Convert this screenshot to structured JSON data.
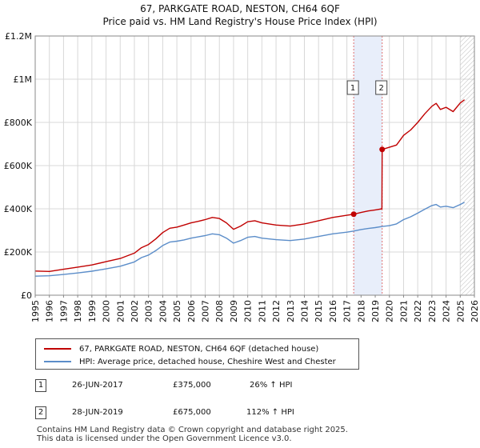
{
  "header": {
    "title_line1": "67, PARKGATE ROAD, NESTON, CH64 6QF",
    "title_line2": "Price paid vs. HM Land Registry's House Price Index (HPI)"
  },
  "colors": {
    "price_line": "#c00000",
    "hpi_line": "#5b8dc9",
    "shade": "#e8eefa",
    "grid": "#d8d8d8",
    "vline": "#e07070"
  },
  "chart_data": {
    "type": "line",
    "title": "Price paid vs. HM Land Registry's House Price Index (HPI)",
    "xlabel": "",
    "ylabel": "",
    "xlim": [
      1995,
      2026
    ],
    "ylim": [
      0,
      1200000
    ],
    "y_ticks": [
      {
        "value": 0,
        "label": "£0"
      },
      {
        "value": 200000,
        "label": "£200K"
      },
      {
        "value": 400000,
        "label": "£400K"
      },
      {
        "value": 600000,
        "label": "£600K"
      },
      {
        "value": 800000,
        "label": "£800K"
      },
      {
        "value": 1000000,
        "label": "£1M"
      },
      {
        "value": 1200000,
        "label": "£1.2M"
      }
    ],
    "x_ticks": [
      "1995",
      "1996",
      "1997",
      "1998",
      "1999",
      "2000",
      "2001",
      "2002",
      "2003",
      "2004",
      "2005",
      "2006",
      "2007",
      "2008",
      "2009",
      "2010",
      "2011",
      "2012",
      "2013",
      "2014",
      "2015",
      "2016",
      "2017",
      "2018",
      "2019",
      "2020",
      "2021",
      "2022",
      "2023",
      "2024",
      "2025",
      "2026"
    ],
    "shaded_range": [
      2017.48,
      2019.49
    ],
    "future_hatch_from": 2025.0,
    "series": [
      {
        "name": "67, PARKGATE ROAD, NESTON, CH64 6QF (detached house)",
        "color": "#c00000",
        "points": [
          [
            1995.0,
            112000
          ],
          [
            1996.0,
            110000
          ],
          [
            1997.0,
            120000
          ],
          [
            1998.0,
            130000
          ],
          [
            1999.0,
            140000
          ],
          [
            2000.0,
            155000
          ],
          [
            2001.0,
            170000
          ],
          [
            2002.0,
            195000
          ],
          [
            2002.5,
            220000
          ],
          [
            2003.0,
            235000
          ],
          [
            2003.5,
            260000
          ],
          [
            2004.0,
            290000
          ],
          [
            2004.5,
            310000
          ],
          [
            2005.0,
            315000
          ],
          [
            2005.5,
            325000
          ],
          [
            2006.0,
            335000
          ],
          [
            2006.5,
            342000
          ],
          [
            2007.0,
            350000
          ],
          [
            2007.5,
            360000
          ],
          [
            2008.0,
            355000
          ],
          [
            2008.5,
            335000
          ],
          [
            2009.0,
            305000
          ],
          [
            2009.5,
            320000
          ],
          [
            2010.0,
            340000
          ],
          [
            2010.5,
            345000
          ],
          [
            2011.0,
            335000
          ],
          [
            2012.0,
            325000
          ],
          [
            2013.0,
            320000
          ],
          [
            2014.0,
            330000
          ],
          [
            2015.0,
            345000
          ],
          [
            2016.0,
            360000
          ],
          [
            2017.0,
            370000
          ],
          [
            2017.48,
            375000
          ],
          [
            2018.0,
            383000
          ],
          [
            2018.5,
            390000
          ],
          [
            2019.0,
            395000
          ],
          [
            2019.47,
            400000
          ],
          [
            2019.49,
            675000
          ],
          [
            2020.0,
            685000
          ],
          [
            2020.5,
            695000
          ],
          [
            2021.0,
            740000
          ],
          [
            2021.5,
            765000
          ],
          [
            2022.0,
            800000
          ],
          [
            2022.5,
            840000
          ],
          [
            2023.0,
            875000
          ],
          [
            2023.3,
            888000
          ],
          [
            2023.6,
            860000
          ],
          [
            2024.0,
            870000
          ],
          [
            2024.5,
            850000
          ],
          [
            2025.0,
            890000
          ],
          [
            2025.3,
            905000
          ]
        ]
      },
      {
        "name": "HPI: Average price, detached house, Cheshire West and Chester",
        "color": "#5b8dc9",
        "points": [
          [
            1995.0,
            88000
          ],
          [
            1996.0,
            90000
          ],
          [
            1997.0,
            96000
          ],
          [
            1998.0,
            103000
          ],
          [
            1999.0,
            111000
          ],
          [
            2000.0,
            122000
          ],
          [
            2001.0,
            134000
          ],
          [
            2002.0,
            154000
          ],
          [
            2002.5,
            174000
          ],
          [
            2003.0,
            186000
          ],
          [
            2003.5,
            206000
          ],
          [
            2004.0,
            230000
          ],
          [
            2004.5,
            246000
          ],
          [
            2005.0,
            250000
          ],
          [
            2005.5,
            256000
          ],
          [
            2006.0,
            264000
          ],
          [
            2006.5,
            270000
          ],
          [
            2007.0,
            276000
          ],
          [
            2007.5,
            284000
          ],
          [
            2008.0,
            280000
          ],
          [
            2008.5,
            264000
          ],
          [
            2009.0,
            241000
          ],
          [
            2009.5,
            253000
          ],
          [
            2010.0,
            268000
          ],
          [
            2010.5,
            272000
          ],
          [
            2011.0,
            264000
          ],
          [
            2012.0,
            257000
          ],
          [
            2013.0,
            253000
          ],
          [
            2014.0,
            260000
          ],
          [
            2015.0,
            272000
          ],
          [
            2016.0,
            284000
          ],
          [
            2017.0,
            292000
          ],
          [
            2017.48,
            297000
          ],
          [
            2018.0,
            304000
          ],
          [
            2018.5,
            309000
          ],
          [
            2019.0,
            313000
          ],
          [
            2019.49,
            318000
          ],
          [
            2020.0,
            322000
          ],
          [
            2020.5,
            330000
          ],
          [
            2021.0,
            350000
          ],
          [
            2021.5,
            363000
          ],
          [
            2022.0,
            380000
          ],
          [
            2022.5,
            398000
          ],
          [
            2023.0,
            415000
          ],
          [
            2023.3,
            420000
          ],
          [
            2023.6,
            408000
          ],
          [
            2024.0,
            412000
          ],
          [
            2024.5,
            405000
          ],
          [
            2025.0,
            420000
          ],
          [
            2025.3,
            430000
          ]
        ]
      }
    ],
    "transactions": [
      {
        "marker": "1",
        "x": 2017.48,
        "y": 375000
      },
      {
        "marker": "2",
        "x": 2019.49,
        "y": 675000
      }
    ]
  },
  "legend": {
    "items": [
      {
        "label": "67, PARKGATE ROAD, NESTON, CH64 6QF (detached house)",
        "color": "#c00000"
      },
      {
        "label": "HPI: Average price, detached house, Cheshire West and Chester",
        "color": "#5b8dc9"
      }
    ]
  },
  "transactions_table": [
    {
      "marker": "1",
      "date": "26-JUN-2017",
      "price": "£375,000",
      "hpi": "26% ↑ HPI"
    },
    {
      "marker": "2",
      "date": "28-JUN-2019",
      "price": "£675,000",
      "hpi": "112% ↑ HPI"
    }
  ],
  "footer": {
    "line1": "Contains HM Land Registry data © Crown copyright and database right 2025.",
    "line2": "This data is licensed under the Open Government Licence v3.0."
  }
}
